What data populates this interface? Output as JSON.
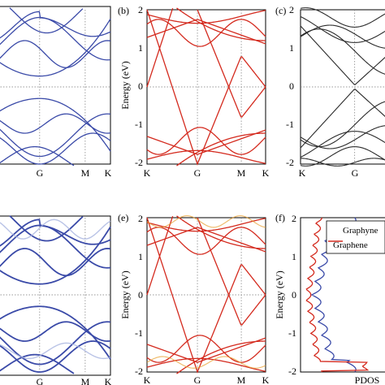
{
  "figure": {
    "panels": [
      {
        "id": "a",
        "letter": "",
        "ylabel": "",
        "xticks": [
          "G",
          "M",
          "K"
        ],
        "yticks": []
      },
      {
        "id": "b",
        "letter": "(b)",
        "ylabel": "Energy (eV)",
        "xticks": [
          "K",
          "G",
          "M",
          "K"
        ],
        "yticks": [
          "2",
          "1",
          "0",
          "-1",
          "-2"
        ]
      },
      {
        "id": "c",
        "letter": "(c)",
        "ylabel": "",
        "xticks": [
          "K",
          "G"
        ],
        "yticks": [
          "2",
          "1",
          "0",
          "-1",
          "-2"
        ]
      },
      {
        "id": "d",
        "letter": "",
        "ylabel": "",
        "xticks": [
          "G",
          "M",
          "K"
        ],
        "yticks": []
      },
      {
        "id": "e",
        "letter": "(e)",
        "ylabel": "Energy (eV)",
        "xticks": [
          "K",
          "G",
          "M",
          "K"
        ],
        "yticks": [
          "2",
          "1",
          "0",
          "-1",
          "-2"
        ]
      },
      {
        "id": "f",
        "letter": "(f)",
        "ylabel": "Energy (eV)",
        "xticks": [
          "PDOS"
        ],
        "yticks": [
          "2",
          "1",
          "0",
          "-1",
          "-2"
        ]
      }
    ],
    "colors": {
      "blue": "#3a4aa8",
      "red": "#d42a1e",
      "black": "#2a2a2a",
      "orange": "#e8a030",
      "lightblue": "#a8b4e0"
    }
  },
  "chart_data": [
    {
      "panel": "a",
      "type": "line",
      "title": "",
      "ylabel": "",
      "ylim": [
        -2,
        2
      ],
      "xticks": [
        "G",
        "M",
        "K"
      ],
      "bands_note": "blue band structure, gap at G",
      "series": [
        {
          "color": "blue"
        }
      ]
    },
    {
      "panel": "b",
      "type": "line",
      "title": "",
      "ylabel": "Energy (eV)",
      "ylim": [
        -2,
        2
      ],
      "xticks": [
        "K",
        "G",
        "M",
        "K"
      ],
      "series": [
        {
          "color": "red",
          "dirac_point": 0
        }
      ]
    },
    {
      "panel": "c",
      "type": "line",
      "title": "",
      "ylabel": "",
      "ylim": [
        -2,
        2
      ],
      "xticks": [
        "K",
        "G"
      ],
      "series": [
        {
          "color": "black"
        }
      ]
    },
    {
      "panel": "d",
      "type": "line",
      "title": "",
      "ylabel": "",
      "ylim": [
        -2,
        2
      ],
      "xticks": [
        "G",
        "M",
        "K"
      ],
      "series": [
        {
          "color": "blue"
        }
      ]
    },
    {
      "panel": "e",
      "type": "line",
      "title": "",
      "ylabel": "Energy (eV)",
      "ylim": [
        -2,
        2
      ],
      "xticks": [
        "K",
        "G",
        "M",
        "K"
      ],
      "series": [
        {
          "color": "red"
        }
      ]
    },
    {
      "panel": "f",
      "type": "line",
      "title": "",
      "ylabel": "Energy (eV)",
      "xlabel": "PDOS",
      "ylim": [
        -2,
        2
      ],
      "legend": {
        "position": "top-right",
        "entries": [
          "Graphyne",
          "Graphene"
        ]
      },
      "series": [
        {
          "name": "Graphyne",
          "color": "blue"
        },
        {
          "name": "Graphene",
          "color": "red"
        }
      ]
    }
  ]
}
